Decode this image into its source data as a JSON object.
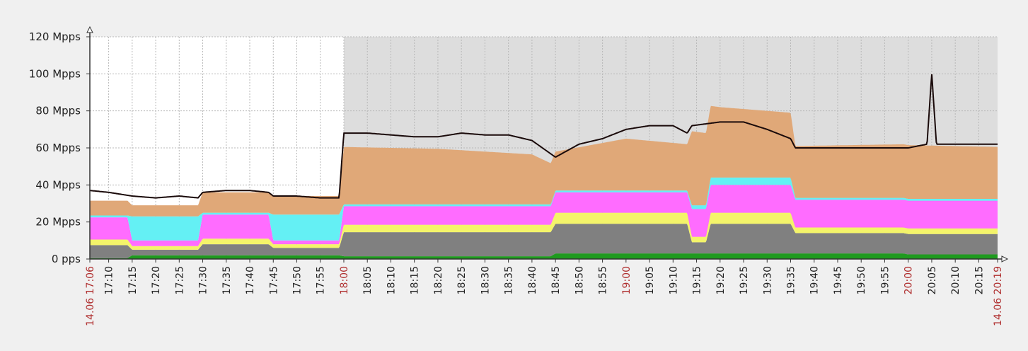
{
  "chart_data": {
    "type": "area",
    "title": "",
    "xlabel": "",
    "ylabel": "",
    "y_unit": "Mpps",
    "ylim": [
      0,
      120
    ],
    "y_ticks": [
      {
        "value": 0,
        "label": "0 pps"
      },
      {
        "value": 20,
        "label": "20 Mpps"
      },
      {
        "value": 40,
        "label": "40 Mpps"
      },
      {
        "value": 60,
        "label": "60 Mpps"
      },
      {
        "value": 80,
        "label": "80 Mpps"
      },
      {
        "value": 100,
        "label": "100 Mpps"
      },
      {
        "value": 120,
        "label": "120 Mpps"
      }
    ],
    "x_range": [
      "17:06",
      "20:19"
    ],
    "x_start_label": "14.06 17:06",
    "x_end_label": "14.06 20:19",
    "x_ticks": [
      "17:10",
      "17:15",
      "17:20",
      "17:25",
      "17:30",
      "17:35",
      "17:40",
      "17:45",
      "17:50",
      "17:55",
      "18:00",
      "18:05",
      "18:10",
      "18:15",
      "18:20",
      "18:25",
      "18:30",
      "18:35",
      "18:40",
      "18:45",
      "18:50",
      "18:55",
      "19:00",
      "19:05",
      "19:10",
      "19:15",
      "19:20",
      "19:25",
      "19:30",
      "19:35",
      "19:40",
      "19:45",
      "19:50",
      "19:55",
      "20:00",
      "20:05",
      "20:10",
      "20:15"
    ],
    "highlighted_x_ticks": [
      "18:00",
      "19:00",
      "20:00"
    ],
    "grid": true,
    "shaded_region_start": "18:00",
    "colors": {
      "green": "#1f9a1f",
      "gray": "#808080",
      "yellow": "#f4f46a",
      "magenta": "#ff6cff",
      "cyan": "#64f0f4",
      "orange": "#e0a878",
      "top_line": "#1a0a0a",
      "shade": "#dddddd"
    },
    "series": [
      {
        "color": "green",
        "x": [
          "17:06",
          "17:14",
          "17:15",
          "17:59",
          "18:00",
          "18:44",
          "18:45",
          "19:59",
          "20:00",
          "20:19"
        ],
        "values": [
          0.5,
          0.5,
          2,
          2,
          1.5,
          1.5,
          3,
          3,
          2.5,
          2.5
        ]
      },
      {
        "color": "gray",
        "x": [
          "17:06",
          "17:14",
          "17:15",
          "17:29",
          "17:30",
          "17:44",
          "17:45",
          "17:59",
          "18:00",
          "18:44",
          "18:45",
          "19:13",
          "19:14",
          "19:17",
          "19:18",
          "19:35",
          "19:36",
          "20:19"
        ],
        "values": [
          7,
          7,
          3,
          3,
          6,
          6,
          4,
          4,
          13,
          13,
          16,
          16,
          6,
          6,
          16,
          16,
          11,
          11
        ]
      },
      {
        "color": "yellow",
        "x": [
          "17:06",
          "17:14",
          "17:15",
          "17:29",
          "17:30",
          "17:44",
          "17:45",
          "17:59",
          "18:00",
          "18:44",
          "18:45",
          "19:13",
          "19:14",
          "19:17",
          "19:18",
          "19:35",
          "19:36",
          "20:19"
        ],
        "values": [
          3,
          3,
          2,
          2,
          3,
          3,
          2,
          2,
          4,
          4,
          6,
          6,
          3,
          3,
          6,
          6,
          3,
          3
        ]
      },
      {
        "color": "magenta",
        "x": [
          "17:06",
          "17:14",
          "17:15",
          "17:29",
          "17:30",
          "17:44",
          "17:45",
          "17:59",
          "18:00",
          "18:44",
          "18:45",
          "19:13",
          "19:14",
          "19:17",
          "19:18",
          "19:35",
          "19:36",
          "20:19"
        ],
        "values": [
          12,
          12,
          3,
          3,
          13,
          13,
          2,
          2,
          10,
          10,
          11,
          11,
          15,
          15,
          15,
          15,
          15,
          15
        ]
      },
      {
        "color": "cyan",
        "x": [
          "17:06",
          "17:14",
          "17:15",
          "17:29",
          "17:30",
          "17:44",
          "17:45",
          "17:59",
          "18:00",
          "18:44",
          "18:45",
          "19:13",
          "19:14",
          "19:17",
          "19:18",
          "19:35",
          "19:36",
          "20:19"
        ],
        "values": [
          1,
          1,
          13,
          13,
          1,
          1,
          14,
          14,
          1,
          1,
          1,
          1,
          2,
          2,
          4,
          4,
          1,
          1
        ]
      },
      {
        "color": "orange",
        "x": [
          "17:06",
          "17:14",
          "17:15",
          "17:29",
          "17:30",
          "17:44",
          "17:45",
          "17:59",
          "18:00",
          "18:20",
          "18:40",
          "18:45",
          "19:00",
          "19:13",
          "19:14",
          "19:20",
          "19:35",
          "19:36",
          "20:00",
          "20:19"
        ],
        "values": [
          8,
          8,
          6,
          6,
          11,
          11,
          10,
          10,
          31,
          30,
          27,
          21,
          28,
          25,
          40,
          38,
          35,
          28,
          29,
          28
        ]
      },
      {
        "color": "top_line",
        "x": [
          "17:06",
          "17:10",
          "17:15",
          "17:20",
          "17:25",
          "17:29",
          "17:30",
          "17:35",
          "17:40",
          "17:44",
          "17:45",
          "17:50",
          "17:55",
          "17:59",
          "18:00",
          "18:05",
          "18:10",
          "18:15",
          "18:20",
          "18:25",
          "18:30",
          "18:35",
          "18:40",
          "18:45",
          "18:50",
          "18:55",
          "19:00",
          "19:05",
          "19:10",
          "19:13",
          "19:14",
          "19:20",
          "19:25",
          "19:30",
          "19:35",
          "19:36",
          "19:40",
          "19:45",
          "19:50",
          "19:55",
          "20:00",
          "20:04",
          "20:05",
          "20:06",
          "20:10",
          "20:15",
          "20:19"
        ],
        "values": [
          37,
          36,
          34,
          33,
          34,
          33,
          36,
          37,
          37,
          36,
          34,
          34,
          33,
          33,
          68,
          68,
          67,
          66,
          66,
          68,
          67,
          67,
          64,
          55,
          62,
          65,
          70,
          72,
          72,
          68,
          72,
          74,
          74,
          70,
          65,
          60,
          60,
          60,
          60,
          60,
          60,
          62,
          100,
          62,
          62,
          62,
          62
        ]
      }
    ]
  }
}
